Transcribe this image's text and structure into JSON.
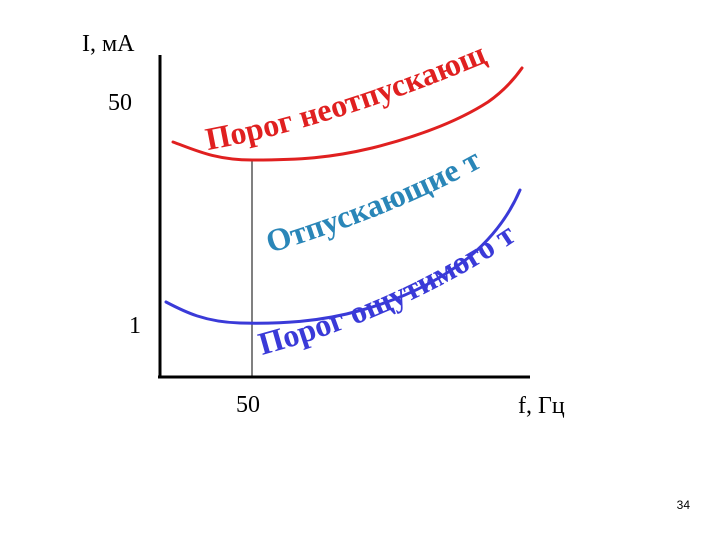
{
  "chart_data": {
    "type": "line",
    "xlabel": "f, Гц",
    "ylabel": "I, мА",
    "x_ticks": [
      "50"
    ],
    "y_ticks": [
      "50",
      "1"
    ],
    "series": [
      {
        "name": "Порог неотпускающего тока",
        "color": "#e02020",
        "shape": "upper curve, minimum near 50 Гц, rising at higher frequency"
      },
      {
        "name": "Порог ощутимого тока",
        "color": "#3a3ad8",
        "shape": "lower curve, minimum near 50 Гц, rising at higher frequency"
      }
    ],
    "annotations": [
      "Отпускающие токи"
    ],
    "annotation_color": "#2a86b8",
    "grid": false
  },
  "page_number": "34"
}
